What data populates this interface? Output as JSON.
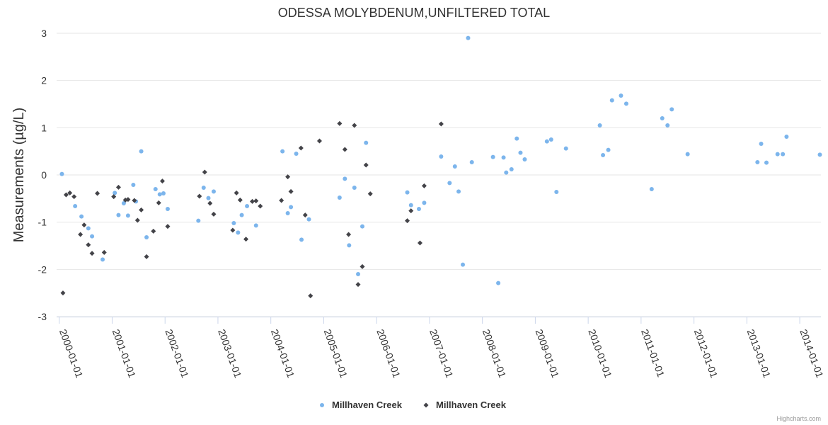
{
  "chart_data": {
    "type": "scatter",
    "title": "ODESSA MOLYBDENUM,UNFILTERED TOTAL",
    "ylabel": "Measurements (µg/L)",
    "xlabel": "",
    "ylim": [
      -3,
      3
    ],
    "yticks": [
      3,
      2,
      1,
      0,
      -1,
      -2,
      -3
    ],
    "xlim": [
      1999.95,
      2014.4
    ],
    "xticks": [
      {
        "label": "2000-01-01",
        "value": 2000
      },
      {
        "label": "2001-01-01",
        "value": 2001
      },
      {
        "label": "2002-01-01",
        "value": 2002
      },
      {
        "label": "2003-01-01",
        "value": 2003
      },
      {
        "label": "2004-01-01",
        "value": 2004
      },
      {
        "label": "2005-01-01",
        "value": 2005
      },
      {
        "label": "2006-01-01",
        "value": 2006
      },
      {
        "label": "2007-01-01",
        "value": 2007
      },
      {
        "label": "2008-01-01",
        "value": 2008
      },
      {
        "label": "2009-01-01",
        "value": 2009
      },
      {
        "label": "2010-01-01",
        "value": 2010
      },
      {
        "label": "2011-01-01",
        "value": 2011
      },
      {
        "label": "2012-01-01",
        "value": 2012
      },
      {
        "label": "2013-01-01",
        "value": 2013
      },
      {
        "label": "2014-01-01",
        "value": 2014
      }
    ],
    "legend_position": "bottom-center",
    "series": [
      {
        "name": "Millhaven Creek",
        "marker": "circle",
        "color": "#7cb5ec",
        "points": [
          [
            2000.05,
            0.02
          ],
          [
            2000.3,
            -0.66
          ],
          [
            2000.42,
            -0.88
          ],
          [
            2000.55,
            -1.13
          ],
          [
            2000.62,
            -1.3
          ],
          [
            2000.82,
            -1.79
          ],
          [
            2001.05,
            -0.38
          ],
          [
            2001.12,
            -0.85
          ],
          [
            2001.22,
            -0.6
          ],
          [
            2001.3,
            -0.86
          ],
          [
            2001.4,
            -0.21
          ],
          [
            2001.45,
            -0.56
          ],
          [
            2001.55,
            0.5
          ],
          [
            2001.65,
            -1.32
          ],
          [
            2001.82,
            -0.3
          ],
          [
            2001.9,
            -0.41
          ],
          [
            2001.97,
            -0.39
          ],
          [
            2002.05,
            -0.72
          ],
          [
            2002.63,
            -0.97
          ],
          [
            2002.73,
            -0.27
          ],
          [
            2002.82,
            -0.49
          ],
          [
            2002.92,
            -0.35
          ],
          [
            2003.3,
            -1.02
          ],
          [
            2003.38,
            -1.22
          ],
          [
            2003.45,
            -0.85
          ],
          [
            2003.55,
            -0.66
          ],
          [
            2003.72,
            -1.07
          ],
          [
            2004.22,
            0.5
          ],
          [
            2004.32,
            -0.81
          ],
          [
            2004.38,
            -0.68
          ],
          [
            2004.48,
            0.45
          ],
          [
            2004.58,
            -1.37
          ],
          [
            2004.72,
            -0.94
          ],
          [
            2005.3,
            -0.48
          ],
          [
            2005.4,
            -0.08
          ],
          [
            2005.48,
            -1.49
          ],
          [
            2005.58,
            -0.27
          ],
          [
            2005.65,
            -2.1
          ],
          [
            2005.73,
            -1.09
          ],
          [
            2005.8,
            0.68
          ],
          [
            2006.58,
            -0.37
          ],
          [
            2006.65,
            -0.64
          ],
          [
            2006.8,
            -0.72
          ],
          [
            2006.9,
            -0.59
          ],
          [
            2007.22,
            0.39
          ],
          [
            2007.38,
            -0.17
          ],
          [
            2007.48,
            0.18
          ],
          [
            2007.55,
            -0.35
          ],
          [
            2007.63,
            -1.9
          ],
          [
            2007.73,
            2.9
          ],
          [
            2007.8,
            0.27
          ],
          [
            2008.2,
            0.38
          ],
          [
            2008.3,
            -2.29
          ],
          [
            2008.4,
            0.37
          ],
          [
            2008.45,
            0.05
          ],
          [
            2008.55,
            0.12
          ],
          [
            2008.65,
            0.77
          ],
          [
            2008.72,
            0.47
          ],
          [
            2008.8,
            0.33
          ],
          [
            2009.22,
            0.71
          ],
          [
            2009.3,
            0.75
          ],
          [
            2009.4,
            -0.36
          ],
          [
            2009.58,
            0.56
          ],
          [
            2010.22,
            1.05
          ],
          [
            2010.28,
            0.42
          ],
          [
            2010.38,
            0.53
          ],
          [
            2010.45,
            1.58
          ],
          [
            2010.62,
            1.68
          ],
          [
            2010.72,
            1.51
          ],
          [
            2011.2,
            -0.3
          ],
          [
            2011.4,
            1.2
          ],
          [
            2011.5,
            1.05
          ],
          [
            2011.58,
            1.39
          ],
          [
            2011.88,
            0.44
          ],
          [
            2013.2,
            0.27
          ],
          [
            2013.27,
            0.66
          ],
          [
            2013.37,
            0.26
          ],
          [
            2013.58,
            0.44
          ],
          [
            2013.68,
            0.44
          ],
          [
            2013.75,
            0.81
          ],
          [
            2014.38,
            0.43
          ]
        ]
      },
      {
        "name": "Millhaven Creek",
        "marker": "diamond",
        "color": "#434348",
        "points": [
          [
            2000.07,
            -2.5
          ],
          [
            2000.13,
            -0.42
          ],
          [
            2000.2,
            -0.38
          ],
          [
            2000.28,
            -0.46
          ],
          [
            2000.4,
            -1.26
          ],
          [
            2000.47,
            -1.06
          ],
          [
            2000.55,
            -1.48
          ],
          [
            2000.62,
            -1.66
          ],
          [
            2000.72,
            -0.39
          ],
          [
            2000.85,
            -1.64
          ],
          [
            2001.03,
            -0.46
          ],
          [
            2001.12,
            -0.26
          ],
          [
            2001.25,
            -0.53
          ],
          [
            2001.3,
            -0.52
          ],
          [
            2001.42,
            -0.54
          ],
          [
            2001.48,
            -0.96
          ],
          [
            2001.55,
            -0.74
          ],
          [
            2001.65,
            -1.73
          ],
          [
            2001.78,
            -1.19
          ],
          [
            2001.88,
            -0.59
          ],
          [
            2001.95,
            -0.13
          ],
          [
            2002.05,
            -1.09
          ],
          [
            2002.65,
            -0.45
          ],
          [
            2002.75,
            0.06
          ],
          [
            2002.85,
            -0.6
          ],
          [
            2002.92,
            -0.83
          ],
          [
            2003.28,
            -1.17
          ],
          [
            2003.35,
            -0.38
          ],
          [
            2003.42,
            -0.53
          ],
          [
            2003.53,
            -1.36
          ],
          [
            2003.65,
            -0.56
          ],
          [
            2003.72,
            -0.55
          ],
          [
            2003.8,
            -0.66
          ],
          [
            2004.2,
            -0.54
          ],
          [
            2004.32,
            -0.04
          ],
          [
            2004.38,
            -0.35
          ],
          [
            2004.57,
            0.57
          ],
          [
            2004.65,
            -0.85
          ],
          [
            2004.75,
            -2.56
          ],
          [
            2004.92,
            0.72
          ],
          [
            2005.3,
            1.09
          ],
          [
            2005.4,
            0.54
          ],
          [
            2005.47,
            -1.26
          ],
          [
            2005.58,
            1.05
          ],
          [
            2005.65,
            -2.32
          ],
          [
            2005.73,
            -1.94
          ],
          [
            2005.8,
            0.21
          ],
          [
            2005.88,
            -0.4
          ],
          [
            2006.58,
            -0.97
          ],
          [
            2006.65,
            -0.76
          ],
          [
            2006.82,
            -1.44
          ],
          [
            2006.9,
            -0.23
          ],
          [
            2007.22,
            1.08
          ]
        ]
      }
    ]
  },
  "credits": "Highcharts.com"
}
